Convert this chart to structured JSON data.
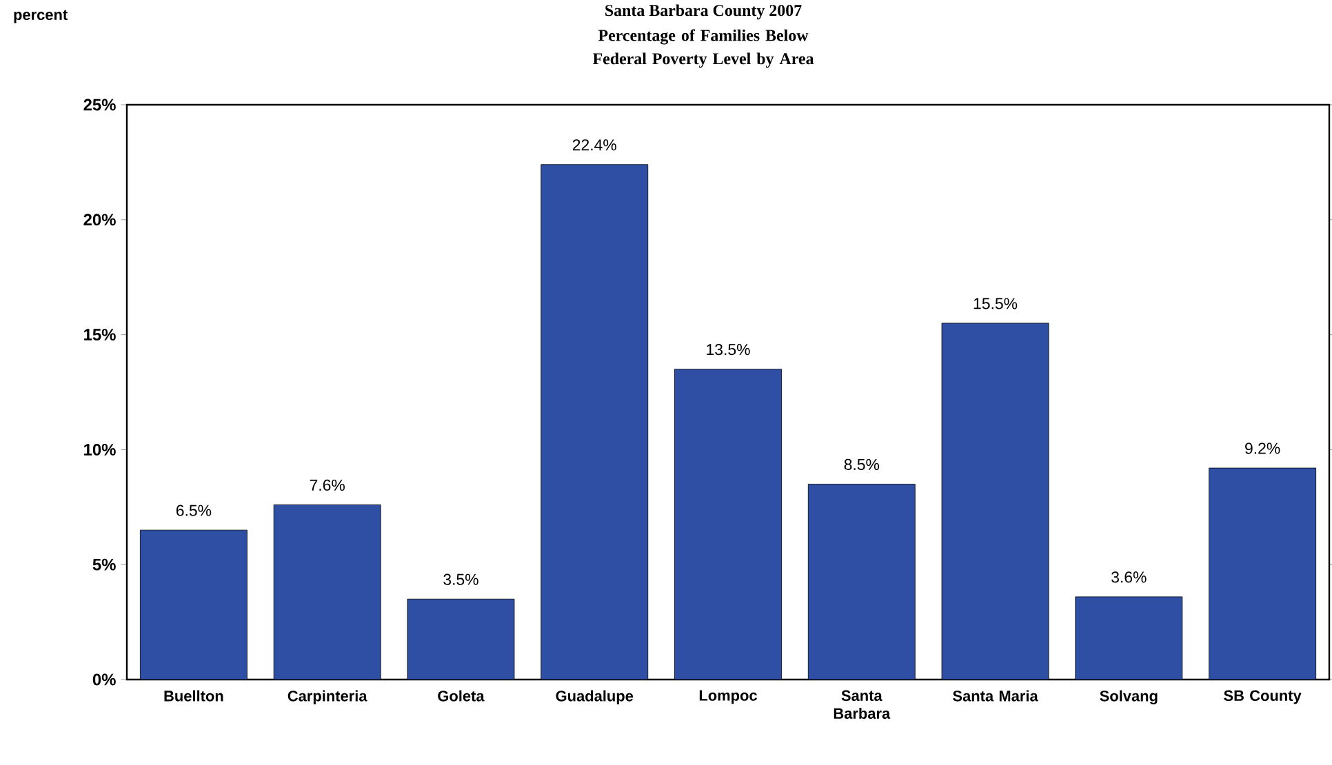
{
  "chart_data": {
    "type": "bar",
    "title": "Santa Barbara County 2007",
    "subtitle": "Percentage of Families Below Federal Poverty Level by Area",
    "annotations": [
      "percent"
    ],
    "categories": [
      "Buellton",
      "Carpinteria",
      "Goleta",
      "Guadalupe",
      "Lompoc",
      "Santa Barbara",
      "Santa Maria",
      "Solvang",
      "SB County"
    ],
    "values": [
      6.5,
      7.6,
      3.5,
      22.4,
      13.5,
      8.5,
      15.5,
      3.6,
      9.2
    ],
    "value_labels": [
      "6.5%",
      "7.6%",
      "3.5%",
      "22.4%",
      "13.5%",
      "8.5%",
      "15.5%",
      "3.6%",
      "9.2%"
    ],
    "color": "#2e4fa3",
    "ylim": [
      0,
      25
    ],
    "yticks": [
      {
        "value": 0,
        "label": "0%"
      },
      {
        "value": 5,
        "label": "5%"
      },
      {
        "value": 10,
        "label": "10%"
      },
      {
        "value": 15,
        "label": "15%"
      },
      {
        "value": 20,
        "label": "20%"
      },
      {
        "value": 25,
        "label": "25%"
      }
    ],
    "grid": false
  }
}
